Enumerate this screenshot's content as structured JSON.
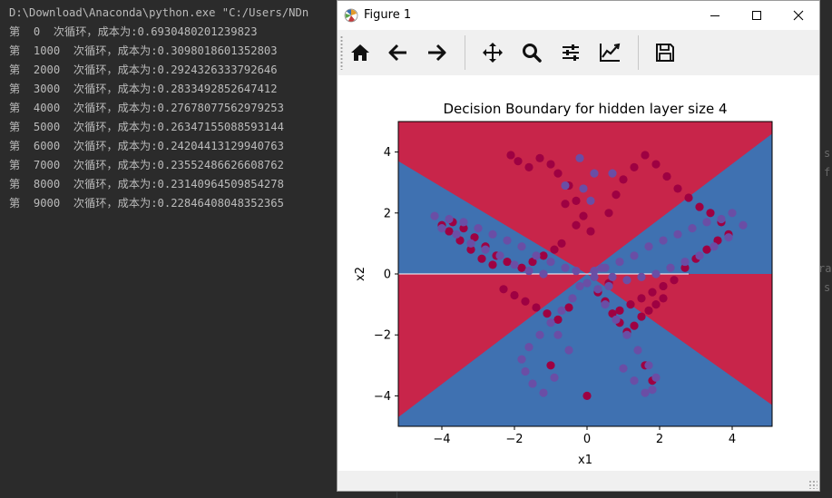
{
  "console": {
    "command": "D:\\Download\\Anaconda\\python.exe \"C:/Users/NDn",
    "lines": [
      "第  0  次循环，成本为:0.6930480201239823",
      "第  1000  次循环，成本为:0.3098018601352803",
      "第  2000  次循环，成本为:0.2924326333792646",
      "第  3000  次循环，成本为:0.2833492852647412",
      "第  4000  次循环，成本为:0.27678077562979253",
      "第  5000  次循环，成本为:0.26347155088593144",
      "第  6000  次循环，成本为:0.24204413129940763",
      "第  7000  次循环，成本为:0.23552486626608762",
      "第  8000  次循环，成本为:0.23140964509854278",
      "第  9000  次循环，成本为:0.22846408048352365"
    ]
  },
  "background_fragments": [
    "s",
    "f",
    "ra",
    "s"
  ],
  "figure_window": {
    "title": "Figure 1",
    "icons": [
      "matplotlib-icon",
      "minimize-icon",
      "maximize-icon",
      "close-icon"
    ],
    "toolbar": [
      "home-icon",
      "back-arrow-icon",
      "forward-arrow-icon",
      "pan-icon",
      "zoom-icon",
      "subplots-icon",
      "edit-axis-icon",
      "save-icon"
    ]
  },
  "chart_data": {
    "type": "scatter",
    "title": "Decision Boundary for hidden layer size 4",
    "xlabel": "x1",
    "ylabel": "x2",
    "xlim": [
      -5.2,
      5.1
    ],
    "ylim": [
      -5.0,
      5.0
    ],
    "xticks": [
      -4,
      -2,
      0,
      2,
      4
    ],
    "yticks": [
      -4,
      -2,
      0,
      2,
      4
    ],
    "xtick_labels": [
      "−4",
      "−2",
      "0",
      "2",
      "4"
    ],
    "ytick_labels": [
      "−4",
      "−2",
      "0",
      "2",
      "4"
    ],
    "background": "decision regions: red and blue, bow-tie boundaries through origin",
    "colors": {
      "region_red": "#c8254a",
      "region_blue": "#3f71b1",
      "point_red": "#9e0142",
      "point_blue": "#6a4ea5"
    },
    "series": [
      {
        "color": "#9e0142",
        "x": [
          -2.1,
          -1.9,
          -1.6,
          -1.3,
          -1.0,
          -0.8,
          -0.5,
          -0.3,
          -0.1,
          0.1,
          -0.7,
          -0.9,
          -1.2,
          -1.5,
          -1.8,
          -2.2,
          -2.5,
          -2.8,
          -3.1,
          -3.4,
          -3.7,
          -4.0,
          -3.8,
          -3.5,
          -3.2,
          -2.9,
          -2.6,
          -2.3,
          -2.0,
          -1.7,
          -1.4,
          -1.1,
          -0.8,
          -0.5,
          0.3,
          0.5,
          0.7,
          0.9,
          1.1,
          1.3,
          1.5,
          1.7,
          1.9,
          2.1,
          0.6,
          0.8,
          1.0,
          1.3,
          1.6,
          1.9,
          2.2,
          2.5,
          2.8,
          3.1,
          3.4,
          3.7,
          3.9,
          3.6,
          3.3,
          3.0,
          2.7,
          2.4,
          2.1,
          1.8,
          1.5,
          1.2,
          0.9,
          0.6,
          -0.3,
          -0.6,
          1.8,
          1.6,
          -1.0,
          0.0
        ],
        "y": [
          3.9,
          3.7,
          3.5,
          3.8,
          3.6,
          3.3,
          2.9,
          2.4,
          1.9,
          1.4,
          1.0,
          0.8,
          0.6,
          0.4,
          0.2,
          0.4,
          0.6,
          0.9,
          1.2,
          1.5,
          1.7,
          1.6,
          1.4,
          1.1,
          0.8,
          0.5,
          0.3,
          -0.5,
          -0.7,
          -0.9,
          -1.1,
          -1.3,
          -1.5,
          -1.1,
          -0.6,
          -0.9,
          -1.3,
          -1.6,
          -1.9,
          -1.7,
          -1.4,
          -1.2,
          -1.0,
          -0.8,
          2.0,
          2.6,
          3.1,
          3.5,
          3.9,
          3.6,
          3.2,
          2.8,
          2.5,
          2.2,
          2.0,
          1.7,
          1.3,
          1.1,
          0.8,
          0.5,
          0.2,
          -0.2,
          -0.4,
          -0.6,
          -0.8,
          -1.0,
          -1.2,
          -0.3,
          1.6,
          2.3,
          -3.5,
          -3.0,
          -3.0,
          -4.0
        ]
      },
      {
        "color": "#6a4ea5",
        "x": [
          -4.2,
          -3.8,
          -3.4,
          -3.0,
          -2.6,
          -2.2,
          -1.8,
          -1.4,
          -1.0,
          -0.6,
          -0.3,
          -4.0,
          -3.6,
          -3.2,
          -2.8,
          -2.4,
          -2.0,
          -1.6,
          -1.2,
          0.2,
          0.5,
          0.9,
          1.3,
          1.7,
          2.1,
          2.5,
          2.9,
          3.3,
          3.7,
          4.0,
          4.3,
          3.9,
          3.5,
          3.1,
          2.7,
          2.3,
          1.9,
          1.5,
          1.1,
          0.7,
          -0.2,
          -0.4,
          -0.7,
          -1.0,
          -1.3,
          -1.6,
          -1.8,
          -1.7,
          -1.5,
          -1.2,
          -0.9,
          0.3,
          0.5,
          0.8,
          1.1,
          1.4,
          1.7,
          1.9,
          1.8,
          1.6,
          1.3,
          1.0,
          -0.5,
          -0.8,
          0.0,
          0.2,
          0.4,
          0.6,
          0.2,
          -0.2,
          0.1,
          -0.1,
          -0.6,
          0.7
        ],
        "y": [
          1.9,
          1.8,
          1.7,
          1.5,
          1.3,
          1.1,
          0.9,
          0.6,
          0.4,
          0.2,
          0.1,
          1.5,
          1.3,
          1.0,
          0.8,
          0.6,
          0.3,
          0.1,
          0.0,
          0.1,
          0.2,
          0.4,
          0.6,
          0.9,
          1.1,
          1.3,
          1.5,
          1.7,
          1.8,
          2.0,
          1.6,
          1.2,
          0.9,
          0.6,
          0.4,
          0.2,
          0.0,
          -0.1,
          -0.2,
          -0.1,
          -0.4,
          -0.8,
          -1.2,
          -1.6,
          -2.0,
          -2.4,
          -2.8,
          -3.2,
          -3.6,
          -3.9,
          -3.4,
          -0.5,
          -1.0,
          -1.5,
          -2.0,
          -2.5,
          -3.0,
          -3.4,
          -3.8,
          -3.9,
          -3.5,
          -3.1,
          -2.5,
          -2.0,
          -0.3,
          -0.1,
          0.2,
          -0.4,
          3.3,
          3.8,
          2.4,
          2.8,
          2.9,
          3.3
        ]
      }
    ]
  }
}
